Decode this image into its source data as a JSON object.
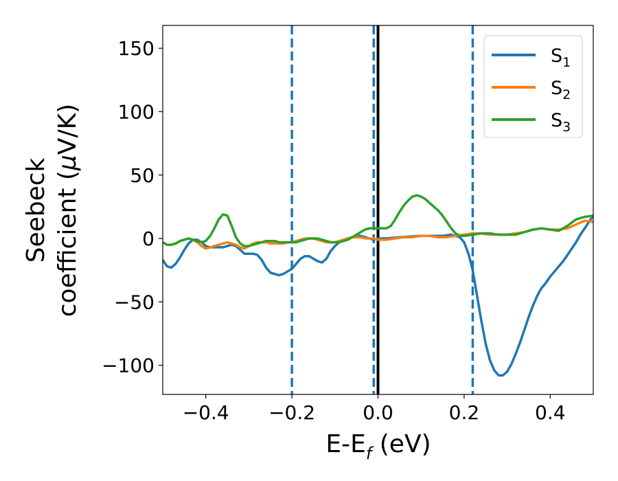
{
  "chart_data": {
    "type": "line",
    "title": "",
    "xlabel": {
      "main": "E-E",
      "sub": "f",
      "unit": " (eV)"
    },
    "ylabel": {
      "line1": "Seebeck",
      "line2_main": "coefficient  (",
      "line2_mu": "μ",
      "line2_unit": "V/K)"
    },
    "xlim": [
      -0.5,
      0.5
    ],
    "ylim": [
      -123,
      168
    ],
    "xticks": [
      {
        "value": -0.4,
        "label": "−0.4"
      },
      {
        "value": -0.2,
        "label": "−0.2"
      },
      {
        "value": 0.0,
        "label": "0.0"
      },
      {
        "value": 0.2,
        "label": "0.2"
      },
      {
        "value": 0.4,
        "label": "0.4"
      }
    ],
    "yticks": [
      {
        "value": -100,
        "label": "−100"
      },
      {
        "value": -50,
        "label": "−50"
      },
      {
        "value": 0,
        "label": "0"
      },
      {
        "value": 50,
        "label": "50"
      },
      {
        "value": 100,
        "label": "100"
      },
      {
        "value": 150,
        "label": "150"
      }
    ],
    "grid": false,
    "legend_position": "top-right",
    "vlines": [
      {
        "x": -0.2,
        "style": "dashed",
        "color": "#1f77b4"
      },
      {
        "x": -0.01,
        "style": "dashed",
        "color": "#1f77b4"
      },
      {
        "x": 0.0,
        "style": "solid",
        "color": "#000000"
      },
      {
        "x": 0.22,
        "style": "dashed",
        "color": "#1f77b4"
      }
    ],
    "series": [
      {
        "name": "S",
        "sub": "1",
        "color": "#1f77b4",
        "x": [
          -0.5,
          -0.49,
          -0.48,
          -0.47,
          -0.46,
          -0.45,
          -0.44,
          -0.43,
          -0.42,
          -0.41,
          -0.4,
          -0.39,
          -0.38,
          -0.37,
          -0.36,
          -0.35,
          -0.34,
          -0.33,
          -0.32,
          -0.31,
          -0.3,
          -0.29,
          -0.28,
          -0.27,
          -0.26,
          -0.25,
          -0.24,
          -0.23,
          -0.22,
          -0.21,
          -0.2,
          -0.19,
          -0.18,
          -0.17,
          -0.16,
          -0.15,
          -0.14,
          -0.13,
          -0.12,
          -0.11,
          -0.1,
          -0.09,
          -0.08,
          -0.07,
          -0.06,
          -0.05,
          -0.04,
          -0.03,
          -0.02,
          -0.01,
          0.0,
          0.02,
          0.05,
          0.1,
          0.15,
          0.17,
          0.19,
          0.2,
          0.21,
          0.22,
          0.23,
          0.24,
          0.25,
          0.26,
          0.27,
          0.28,
          0.29,
          0.3,
          0.31,
          0.32,
          0.33,
          0.34,
          0.35,
          0.36,
          0.37,
          0.38,
          0.39,
          0.4,
          0.41,
          0.42,
          0.43,
          0.44,
          0.45,
          0.46,
          0.47,
          0.48,
          0.49,
          0.5
        ],
        "y": [
          -17,
          -22,
          -23,
          -20,
          -15,
          -9,
          -4,
          -1,
          -1,
          -3,
          -6,
          -7,
          -7,
          -7,
          -7,
          -6,
          -5,
          -6,
          -9,
          -12,
          -12,
          -12,
          -13,
          -17,
          -23,
          -27,
          -28,
          -29,
          -28,
          -26,
          -24,
          -20,
          -16,
          -14,
          -14,
          -16,
          -18,
          -19,
          -16,
          -10,
          -6,
          -3,
          -1,
          0,
          1,
          2,
          2,
          1,
          0,
          -1,
          0,
          0,
          1,
          2,
          2,
          3,
          1,
          -3,
          -12,
          -25,
          -45,
          -65,
          -83,
          -96,
          -104,
          -108,
          -108,
          -105,
          -99,
          -91,
          -82,
          -72,
          -62,
          -53,
          -45,
          -39,
          -35,
          -30,
          -26,
          -22,
          -18,
          -13,
          -8,
          -3,
          3,
          8,
          13,
          18
        ]
      },
      {
        "name": "S",
        "sub": "2",
        "color": "#ff7f0e",
        "x": [
          -0.5,
          -0.49,
          -0.48,
          -0.47,
          -0.46,
          -0.45,
          -0.44,
          -0.43,
          -0.42,
          -0.41,
          -0.4,
          -0.39,
          -0.38,
          -0.37,
          -0.36,
          -0.35,
          -0.34,
          -0.33,
          -0.32,
          -0.31,
          -0.3,
          -0.29,
          -0.28,
          -0.27,
          -0.26,
          -0.25,
          -0.24,
          -0.23,
          -0.22,
          -0.21,
          -0.2,
          -0.19,
          -0.18,
          -0.17,
          -0.16,
          -0.15,
          -0.14,
          -0.13,
          -0.12,
          -0.11,
          -0.1,
          -0.09,
          -0.08,
          -0.07,
          -0.06,
          -0.05,
          -0.04,
          -0.03,
          -0.02,
          -0.01,
          0.0,
          0.02,
          0.04,
          0.06,
          0.08,
          0.1,
          0.12,
          0.14,
          0.16,
          0.18,
          0.2,
          0.22,
          0.24,
          0.26,
          0.28,
          0.3,
          0.32,
          0.34,
          0.36,
          0.38,
          0.4,
          0.42,
          0.44,
          0.46,
          0.48,
          0.5
        ],
        "y": [
          -3,
          -5,
          -5,
          -4,
          -2,
          -1,
          0,
          -1,
          -3,
          -6,
          -8,
          -7,
          -6,
          -5,
          -4,
          -3,
          -4,
          -5,
          -7,
          -8,
          -6,
          -4,
          -3,
          -3,
          -3,
          -4,
          -4,
          -4,
          -4,
          -3,
          -3,
          -2,
          -1,
          0,
          0,
          0,
          -1,
          -2,
          -3,
          -3,
          -3,
          -2,
          -1,
          0,
          1,
          1,
          1,
          0,
          0,
          0,
          -1,
          -1,
          0,
          1,
          1,
          2,
          2,
          1,
          1,
          2,
          3,
          4,
          4,
          3,
          3,
          3,
          4,
          5,
          7,
          8,
          7,
          7,
          8,
          11,
          14,
          13
        ]
      },
      {
        "name": "S",
        "sub": "3",
        "color": "#2ca02c",
        "x": [
          -0.5,
          -0.49,
          -0.48,
          -0.47,
          -0.46,
          -0.45,
          -0.44,
          -0.43,
          -0.42,
          -0.41,
          -0.4,
          -0.39,
          -0.38,
          -0.37,
          -0.36,
          -0.35,
          -0.34,
          -0.33,
          -0.32,
          -0.31,
          -0.3,
          -0.29,
          -0.28,
          -0.27,
          -0.26,
          -0.25,
          -0.24,
          -0.23,
          -0.22,
          -0.21,
          -0.2,
          -0.19,
          -0.18,
          -0.17,
          -0.16,
          -0.15,
          -0.14,
          -0.13,
          -0.12,
          -0.11,
          -0.1,
          -0.09,
          -0.08,
          -0.07,
          -0.06,
          -0.05,
          -0.04,
          -0.03,
          -0.02,
          -0.01,
          0.0,
          0.01,
          0.02,
          0.03,
          0.04,
          0.05,
          0.06,
          0.07,
          0.08,
          0.09,
          0.1,
          0.11,
          0.12,
          0.13,
          0.14,
          0.15,
          0.16,
          0.17,
          0.18,
          0.19,
          0.2,
          0.22,
          0.24,
          0.26,
          0.28,
          0.3,
          0.32,
          0.34,
          0.36,
          0.38,
          0.4,
          0.42,
          0.44,
          0.46,
          0.48,
          0.5
        ],
        "y": [
          -3,
          -5,
          -5,
          -4,
          -2,
          -1,
          0,
          -1,
          -2,
          -3,
          -2,
          2,
          8,
          15,
          19,
          18,
          10,
          1,
          -4,
          -6,
          -6,
          -5,
          -4,
          -3,
          -2,
          -2,
          -2,
          -3,
          -3,
          -3,
          -3,
          -3,
          -2,
          -1,
          0,
          0,
          0,
          -1,
          -2,
          -3,
          -3,
          -3,
          -2,
          -1,
          1,
          3,
          5,
          7,
          8,
          8,
          8,
          8,
          8,
          10,
          15,
          21,
          26,
          30,
          33,
          34,
          33,
          31,
          28,
          25,
          22,
          18,
          13,
          8,
          4,
          2,
          2,
          3,
          4,
          4,
          3,
          3,
          3,
          5,
          7,
          8,
          7,
          6,
          10,
          15,
          17,
          18
        ]
      }
    ]
  }
}
